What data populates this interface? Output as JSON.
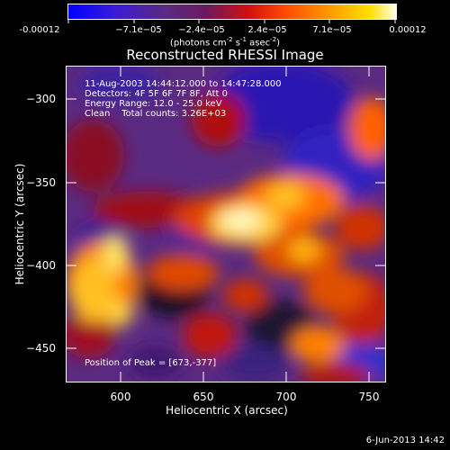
{
  "colorbar": {
    "tick_labels": [
      "-0.00012",
      "−7.1e−05",
      "−2.4e−05",
      "2.4e−05",
      "7.1e−05",
      "0.00012"
    ],
    "units_prefix": "(photons cm",
    "units_exp1": "-2",
    "units_mid": " s",
    "units_exp2": "-1",
    "units_mid2": " asec",
    "units_exp3": "-2",
    "units_suffix": ")"
  },
  "title": "Reconstructed RHESSI Image",
  "info": {
    "line1": "11-Aug-2003 14:44:12.000 to 14:47:28.000",
    "line2": "Detectors: 4F 5F 6F 7F 8F, Att 0",
    "line3": "Energy Range: 12.0 - 25.0 keV",
    "line4": "Clean    Total counts: 3.26E+03"
  },
  "peak_label": "Position of Peak = [673,-377]",
  "axes": {
    "x_title": "Heliocentric X (arcsec)",
    "y_title": "Heliocentric Y (arcsec)",
    "x_ticks": [
      "600",
      "650",
      "700",
      "750"
    ],
    "y_ticks": [
      "−300",
      "−350",
      "−400",
      "−450"
    ]
  },
  "footer": "6-Jun-2013 14:42",
  "colors": {
    "colorbar_stops": [
      "#0000ff",
      "#4b0082",
      "#5a2a80",
      "#ff2000",
      "#ff8000",
      "#ffffe0"
    ]
  }
}
